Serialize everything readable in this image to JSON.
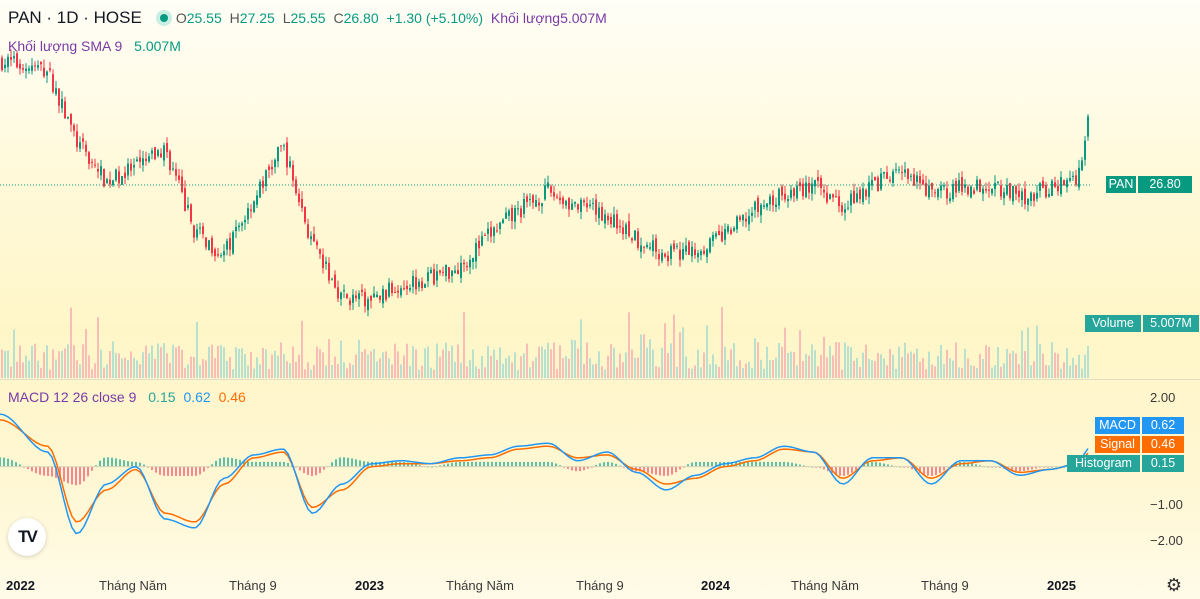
{
  "header": {
    "symbol": "PAN · 1D · HOSE",
    "open_label": "O",
    "open": "25.55",
    "high_label": "H",
    "high": "27.25",
    "low_label": "L",
    "low": "25.55",
    "close_label": "C",
    "close": "26.80",
    "change": "+1.30 (+5.10%)",
    "volume_label": "Khối lượng",
    "volume": "5.007M"
  },
  "volume_sma": {
    "label": "Khối lượng SMA 9",
    "value": "5.007M"
  },
  "macd_legend": {
    "label": "MACD 12 26 close 9",
    "histogram": "0.15",
    "macd": "0.62",
    "signal": "0.46"
  },
  "price_tag": {
    "name": "PAN",
    "value": "26.80"
  },
  "volume_tag": {
    "name": "Volume",
    "value": "5.007M"
  },
  "macd_tags": [
    {
      "name": "MACD",
      "value": "0.62"
    },
    {
      "name": "Signal",
      "value": "0.46"
    },
    {
      "name": "Histogram",
      "value": "0.15"
    }
  ],
  "colors": {
    "up": "#089981",
    "down": "#f23645",
    "macd": "#2196f3",
    "signal": "#ff6d00",
    "histogram": "#26a69a",
    "volume_tag": "#26a69a"
  },
  "icons": {
    "logo": "tradingview-logo",
    "settings": "gear-icon"
  },
  "logo_text": "TV",
  "settings_glyph": "⚙",
  "chart_data": [
    {
      "type": "candlestick",
      "title": "PAN · 1D · HOSE",
      "x_ticks": [
        "2022",
        "Tháng Năm",
        "Tháng 9",
        "2023",
        "Tháng Năm",
        "Tháng 9",
        "2024",
        "Tháng Năm",
        "Tháng 9",
        "2025"
      ],
      "close_path": [
        [
          "2022-01",
          30.2
        ],
        [
          "2022-02",
          29.6
        ],
        [
          "2022-03",
          25.2
        ],
        [
          "2022-04",
          22.8
        ],
        [
          "2022-05",
          23.6
        ],
        [
          "2022-06",
          24.8
        ],
        [
          "2022-07",
          19.7
        ],
        [
          "2022-08",
          18.3
        ],
        [
          "2022-09",
          21.7
        ],
        [
          "2022-10",
          25.0
        ],
        [
          "2022-11",
          18.8
        ],
        [
          "2022-12",
          15.7
        ],
        [
          "2023-01",
          15.4
        ],
        [
          "2023-02",
          16.5
        ],
        [
          "2023-03",
          16.9
        ],
        [
          "2023-04",
          17.6
        ],
        [
          "2023-05",
          19.5
        ],
        [
          "2023-06",
          21.0
        ],
        [
          "2023-07",
          22.2
        ],
        [
          "2023-08",
          21.2
        ],
        [
          "2023-09",
          20.7
        ],
        [
          "2023-10",
          19.3
        ],
        [
          "2023-11",
          18.3
        ],
        [
          "2023-12",
          18.6
        ],
        [
          "2024-01",
          19.5
        ],
        [
          "2024-02",
          21.0
        ],
        [
          "2024-03",
          22.0
        ],
        [
          "2024-04",
          22.5
        ],
        [
          "2024-05",
          21.4
        ],
        [
          "2024-06",
          22.6
        ],
        [
          "2024-07",
          23.3
        ],
        [
          "2024-08",
          22.0
        ],
        [
          "2024-09",
          22.4
        ],
        [
          "2024-10",
          22.7
        ],
        [
          "2024-11",
          21.8
        ],
        [
          "2024-12",
          22.3
        ],
        [
          "2025-01",
          23.2
        ],
        [
          "2025-02",
          26.8
        ]
      ],
      "last_bar": {
        "open": 25.55,
        "high": 27.25,
        "low": 25.55,
        "close": 26.8,
        "volume": "5.007M"
      },
      "volume_sma9": "5.007M"
    },
    {
      "type": "line",
      "title": "MACD 12 26 close 9",
      "y_ticks": [
        "2.00",
        "1.00",
        "0.00",
        "−1.00",
        "−2.00"
      ],
      "ylim": [
        -2.55,
        2.35
      ],
      "series": [
        {
          "name": "MACD",
          "values": [
            [
              "2022-01",
              1.8
            ],
            [
              "2022-02",
              0.5
            ],
            [
              "2022-03",
              -2.3
            ],
            [
              "2022-04",
              -0.6
            ],
            [
              "2022-05",
              0.0
            ],
            [
              "2022-06",
              -1.8
            ],
            [
              "2022-07",
              -2.1
            ],
            [
              "2022-08",
              -0.4
            ],
            [
              "2022-09",
              0.4
            ],
            [
              "2022-10",
              0.6
            ],
            [
              "2022-11",
              -1.6
            ],
            [
              "2022-12",
              -0.6
            ],
            [
              "2023-01",
              0.1
            ],
            [
              "2023-02",
              0.2
            ],
            [
              "2023-03",
              0.1
            ],
            [
              "2023-04",
              0.3
            ],
            [
              "2023-05",
              0.4
            ],
            [
              "2023-06",
              0.7
            ],
            [
              "2023-07",
              0.8
            ],
            [
              "2023-08",
              0.2
            ],
            [
              "2023-09",
              0.5
            ],
            [
              "2023-10",
              -0.2
            ],
            [
              "2023-11",
              -0.8
            ],
            [
              "2023-12",
              -0.3
            ],
            [
              "2024-01",
              0.1
            ],
            [
              "2024-02",
              0.3
            ],
            [
              "2024-03",
              0.7
            ],
            [
              "2024-04",
              0.5
            ],
            [
              "2024-05",
              -0.6
            ],
            [
              "2024-06",
              0.3
            ],
            [
              "2024-07",
              0.3
            ],
            [
              "2024-08",
              -0.6
            ],
            [
              "2024-09",
              0.2
            ],
            [
              "2024-10",
              0.2
            ],
            [
              "2024-11",
              -0.3
            ],
            [
              "2024-12",
              -0.1
            ],
            [
              "2025-01",
              0.1
            ],
            [
              "2025-02",
              0.62
            ]
          ]
        },
        {
          "name": "Signal",
          "values": [
            [
              "2022-01",
              1.6
            ],
            [
              "2022-02",
              0.7
            ],
            [
              "2022-03",
              -1.9
            ],
            [
              "2022-04",
              -0.8
            ],
            [
              "2022-05",
              -0.1
            ],
            [
              "2022-06",
              -1.6
            ],
            [
              "2022-07",
              -1.9
            ],
            [
              "2022-08",
              -0.6
            ],
            [
              "2022-09",
              0.3
            ],
            [
              "2022-10",
              0.5
            ],
            [
              "2022-11",
              -1.4
            ],
            [
              "2022-12",
              -0.8
            ],
            [
              "2023-01",
              0.0
            ],
            [
              "2023-02",
              0.1
            ],
            [
              "2023-03",
              0.1
            ],
            [
              "2023-04",
              0.2
            ],
            [
              "2023-05",
              0.3
            ],
            [
              "2023-06",
              0.6
            ],
            [
              "2023-07",
              0.7
            ],
            [
              "2023-08",
              0.3
            ],
            [
              "2023-09",
              0.4
            ],
            [
              "2023-10",
              -0.1
            ],
            [
              "2023-11",
              -0.6
            ],
            [
              "2023-12",
              -0.4
            ],
            [
              "2024-01",
              0.0
            ],
            [
              "2024-02",
              0.2
            ],
            [
              "2024-03",
              0.6
            ],
            [
              "2024-04",
              0.5
            ],
            [
              "2024-05",
              -0.4
            ],
            [
              "2024-06",
              0.2
            ],
            [
              "2024-07",
              0.3
            ],
            [
              "2024-08",
              -0.4
            ],
            [
              "2024-09",
              0.1
            ],
            [
              "2024-10",
              0.2
            ],
            [
              "2024-11",
              -0.2
            ],
            [
              "2024-12",
              -0.1
            ],
            [
              "2025-01",
              0.1
            ],
            [
              "2025-02",
              0.46
            ]
          ]
        }
      ],
      "histogram_last": 0.15
    }
  ]
}
